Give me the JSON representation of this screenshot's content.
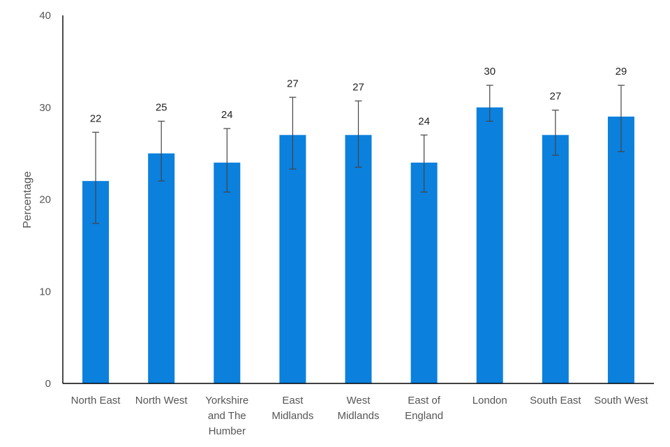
{
  "chart_data": {
    "type": "bar",
    "title": "",
    "xlabel": "",
    "ylabel": "Percentage",
    "ylim": [
      0,
      40
    ],
    "yticks": [
      0,
      10,
      20,
      30,
      40
    ],
    "grid": false,
    "bar_color": "#0b80dd",
    "categories": [
      [
        "North East"
      ],
      [
        "North West"
      ],
      [
        "Yorkshire",
        "and The",
        "Humber"
      ],
      [
        "East",
        "Midlands"
      ],
      [
        "West",
        "Midlands"
      ],
      [
        "East of",
        "England"
      ],
      [
        "London"
      ],
      [
        "South East"
      ],
      [
        "South West"
      ]
    ],
    "values": [
      22,
      25,
      24,
      27,
      27,
      24,
      30,
      27,
      29
    ],
    "value_labels": [
      "22",
      "25",
      "24",
      "27",
      "27",
      "24",
      "30",
      "27",
      "29"
    ],
    "error_low": [
      17.4,
      22.0,
      20.8,
      23.3,
      23.5,
      20.8,
      28.5,
      24.8,
      25.2
    ],
    "error_high": [
      27.3,
      28.5,
      27.7,
      31.1,
      30.7,
      27.0,
      32.4,
      29.7,
      32.4
    ]
  }
}
